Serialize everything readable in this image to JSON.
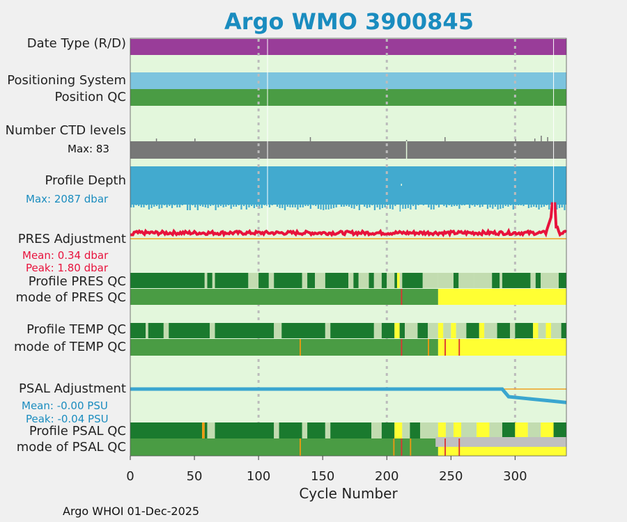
{
  "title": "Argo WMO 3900845",
  "footer": "Argo WHOI 01-Dec-2025",
  "colors": {
    "background": "#e3f7dc",
    "date_type": "#993d99",
    "positioning": "#7cc4de",
    "qc_good": "#4a9c44",
    "qc_dark": "#1a7a2e",
    "qc_light": "#c2dcb0",
    "qc_yellow": "#ffff33",
    "qc_orange": "#ee9911",
    "qc_red": "#dd3333",
    "qc_gray": "#c0c0c0",
    "ctd": "#777777",
    "depth": "#42aacf",
    "pres_line": "#e8123c",
    "psal_line": "#3aa6cf",
    "ref_line": "#f0a020",
    "title": "#1a8cbf"
  },
  "row_labels": {
    "date_type": "Date Type (R/D)",
    "positioning_system": "Positioning System",
    "position_qc": "Position QC",
    "ctd_levels": "Number CTD levels",
    "ctd_max": "Max: 83",
    "profile_depth": "Profile Depth",
    "depth_max": "Max: 2087 dbar",
    "pres_adjustment": "PRES Adjustment",
    "pres_mean": "Mean: 0.34 dbar",
    "pres_peak": "Peak: 1.80 dbar",
    "profile_pres_qc": "Profile PRES QC",
    "mode_pres_qc": "mode of PRES QC",
    "profile_temp_qc": "Profile TEMP QC",
    "mode_temp_qc": "mode of TEMP QC",
    "psal_adjustment": "PSAL Adjustment",
    "psal_mean": "Mean: -0.00 PSU",
    "psal_peak": "Peak: -0.04 PSU",
    "profile_psal_qc": "Profile PSAL QC",
    "mode_psal_qc": "mode of PSAL QC"
  },
  "chart_data": {
    "type": "timeline",
    "title": "Argo WMO 3900845",
    "xlabel": "Cycle Number",
    "xlim": [
      0,
      340
    ],
    "xticks": [
      0,
      50,
      100,
      150,
      200,
      250,
      300
    ],
    "grid_x": [
      100,
      200,
      300
    ],
    "n_cycles": 340,
    "ctd_levels_max": 83,
    "profile_depth_max_dbar": 2087,
    "pres_adjustment": {
      "unit": "dbar",
      "mean": 0.34,
      "peak": 1.8,
      "points": [
        [
          0,
          0.3
        ],
        [
          5,
          0.2
        ],
        [
          10,
          0.3
        ],
        [
          20,
          0.35
        ],
        [
          40,
          0.3
        ],
        [
          60,
          0.35
        ],
        [
          80,
          0.3
        ],
        [
          100,
          0.35
        ],
        [
          110,
          0.35
        ],
        [
          140,
          0.3
        ],
        [
          180,
          0.35
        ],
        [
          220,
          0.3
        ],
        [
          260,
          0.35
        ],
        [
          300,
          0.3
        ],
        [
          325,
          0.5
        ],
        [
          328,
          0.9
        ],
        [
          330,
          1.8
        ],
        [
          332,
          0.5
        ],
        [
          340,
          0.3
        ]
      ]
    },
    "psal_adjustment": {
      "unit": "PSU",
      "mean": -0.0,
      "peak": -0.04,
      "points": [
        [
          0,
          0.0
        ],
        [
          200,
          0.0
        ],
        [
          240,
          0.0
        ],
        [
          290,
          0.0
        ],
        [
          295,
          -0.02
        ],
        [
          310,
          -0.025
        ],
        [
          325,
          -0.03
        ],
        [
          340,
          -0.035
        ]
      ]
    },
    "profile_pres_qc_segments": [
      [
        0,
        58,
        "dark"
      ],
      [
        58,
        60,
        "light"
      ],
      [
        60,
        64,
        "dark"
      ],
      [
        64,
        66,
        "light"
      ],
      [
        66,
        92,
        "dark"
      ],
      [
        92,
        100,
        "light"
      ],
      [
        100,
        108,
        "dark"
      ],
      [
        108,
        112,
        "light"
      ],
      [
        112,
        134,
        "dark"
      ],
      [
        134,
        138,
        "light"
      ],
      [
        138,
        144,
        "dark"
      ],
      [
        144,
        152,
        "light"
      ],
      [
        152,
        170,
        "dark"
      ],
      [
        170,
        174,
        "light"
      ],
      [
        174,
        178,
        "dark"
      ],
      [
        178,
        186,
        "light"
      ],
      [
        186,
        190,
        "dark"
      ],
      [
        190,
        196,
        "light"
      ],
      [
        196,
        200,
        "dark"
      ],
      [
        200,
        206,
        "light"
      ],
      [
        206,
        208,
        "dark"
      ],
      [
        208,
        210,
        "yellow"
      ],
      [
        210,
        212,
        "light"
      ],
      [
        212,
        228,
        "dark"
      ],
      [
        228,
        240,
        "light"
      ],
      [
        240,
        252,
        "light"
      ],
      [
        252,
        256,
        "dark"
      ],
      [
        256,
        268,
        "light"
      ],
      [
        268,
        282,
        "light"
      ],
      [
        282,
        288,
        "dark"
      ],
      [
        288,
        290,
        "light"
      ],
      [
        290,
        312,
        "dark"
      ],
      [
        312,
        316,
        "light"
      ],
      [
        316,
        320,
        "dark"
      ],
      [
        320,
        334,
        "light"
      ],
      [
        334,
        340,
        "dark"
      ]
    ],
    "mode_pres_qc_segments": [
      [
        0,
        240,
        "good"
      ],
      [
        240,
        340,
        "yellow"
      ],
      [
        211,
        212,
        "red"
      ]
    ],
    "profile_temp_qc_segments": [
      [
        0,
        12,
        "dark"
      ],
      [
        12,
        14,
        "light"
      ],
      [
        14,
        26,
        "dark"
      ],
      [
        26,
        30,
        "light"
      ],
      [
        30,
        62,
        "dark"
      ],
      [
        62,
        66,
        "light"
      ],
      [
        66,
        112,
        "dark"
      ],
      [
        112,
        118,
        "light"
      ],
      [
        118,
        152,
        "dark"
      ],
      [
        152,
        156,
        "light"
      ],
      [
        156,
        190,
        "dark"
      ],
      [
        190,
        196,
        "light"
      ],
      [
        196,
        206,
        "dark"
      ],
      [
        206,
        210,
        "yellow"
      ],
      [
        210,
        214,
        "dark"
      ],
      [
        214,
        224,
        "light"
      ],
      [
        224,
        232,
        "dark"
      ],
      [
        232,
        240,
        "light"
      ],
      [
        240,
        244,
        "yellow"
      ],
      [
        244,
        250,
        "light"
      ],
      [
        250,
        254,
        "yellow"
      ],
      [
        254,
        262,
        "light"
      ],
      [
        262,
        272,
        "dark"
      ],
      [
        272,
        276,
        "yellow"
      ],
      [
        276,
        286,
        "light"
      ],
      [
        286,
        296,
        "dark"
      ],
      [
        296,
        300,
        "light"
      ],
      [
        300,
        314,
        "dark"
      ],
      [
        314,
        318,
        "yellow"
      ],
      [
        318,
        324,
        "light"
      ],
      [
        324,
        328,
        "yellow"
      ],
      [
        328,
        336,
        "light"
      ],
      [
        336,
        340,
        "dark"
      ]
    ],
    "mode_temp_qc_segments": [
      [
        0,
        240,
        "good"
      ],
      [
        240,
        340,
        "yellow"
      ],
      [
        132,
        133,
        "orange"
      ],
      [
        211,
        212,
        "red"
      ],
      [
        232,
        233,
        "orange"
      ],
      [
        245,
        246,
        "red"
      ],
      [
        256,
        257,
        "red"
      ]
    ],
    "profile_psal_qc_segments": [
      [
        0,
        56,
        "dark"
      ],
      [
        56,
        58,
        "orange"
      ],
      [
        58,
        60,
        "dark"
      ],
      [
        60,
        66,
        "light"
      ],
      [
        66,
        112,
        "dark"
      ],
      [
        112,
        116,
        "light"
      ],
      [
        116,
        134,
        "dark"
      ],
      [
        134,
        138,
        "light"
      ],
      [
        138,
        152,
        "dark"
      ],
      [
        152,
        156,
        "light"
      ],
      [
        156,
        188,
        "dark"
      ],
      [
        188,
        196,
        "light"
      ],
      [
        196,
        206,
        "dark"
      ],
      [
        206,
        212,
        "yellow"
      ],
      [
        212,
        218,
        "light"
      ],
      [
        218,
        226,
        "dark"
      ],
      [
        226,
        240,
        "light"
      ],
      [
        240,
        246,
        "yellow"
      ],
      [
        246,
        252,
        "light"
      ],
      [
        252,
        258,
        "yellow"
      ],
      [
        258,
        270,
        "light"
      ],
      [
        270,
        280,
        "yellow"
      ],
      [
        280,
        290,
        "light"
      ],
      [
        290,
        300,
        "dark"
      ],
      [
        300,
        310,
        "yellow"
      ],
      [
        310,
        320,
        "light"
      ],
      [
        320,
        330,
        "yellow"
      ],
      [
        330,
        340,
        "dark"
      ]
    ],
    "mode_psal_qc_segments": [
      [
        0,
        240,
        "good"
      ],
      [
        240,
        340,
        "yellow"
      ],
      [
        238,
        340,
        "gray_top"
      ],
      [
        132,
        133,
        "orange"
      ],
      [
        205,
        206,
        "orange"
      ],
      [
        211,
        212,
        "red"
      ],
      [
        218,
        219,
        "orange"
      ],
      [
        245,
        246,
        "red"
      ],
      [
        256,
        257,
        "red"
      ]
    ]
  }
}
